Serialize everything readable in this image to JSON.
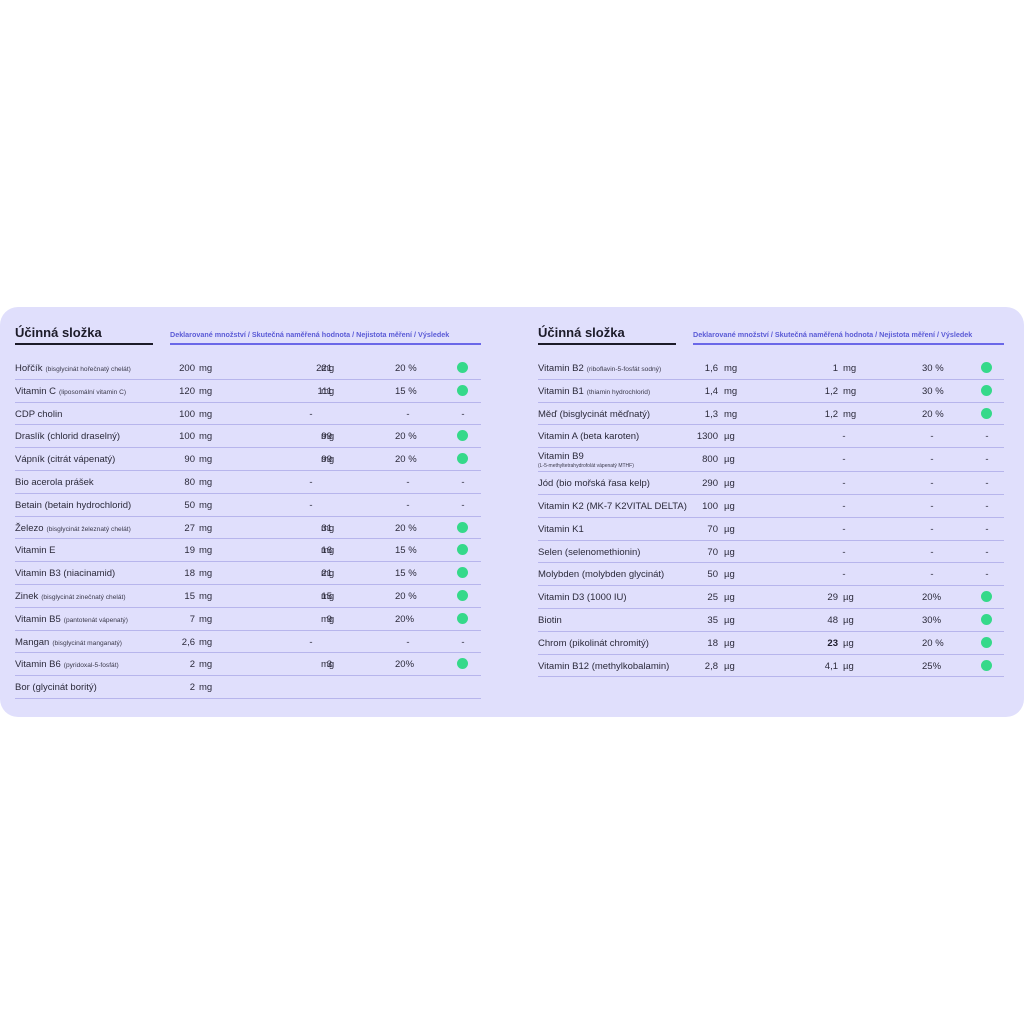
{
  "left": {
    "title": "Účinná složka",
    "columns": "Deklarované množství / Skutečná naměřená hodnota / Nejistota měření / Výsledek",
    "rows": [
      {
        "name": "Hořčík",
        "note": "(bisglycinát hořečnatý chelát)",
        "decl": "200",
        "decl_unit": "mg",
        "meas": "221",
        "meas_unit": "mg",
        "unc": "20 %",
        "ok": true
      },
      {
        "name": "Vitamin C",
        "note": "(liposomální vitamin C)",
        "decl": "120",
        "decl_unit": "mg",
        "meas": "111",
        "meas_unit": "mg",
        "unc": "15 %",
        "ok": true
      },
      {
        "name": "CDP cholin",
        "note": "",
        "decl": "100",
        "decl_unit": "mg",
        "meas": "-",
        "meas_unit": "",
        "unc": "-",
        "ok": false,
        "result": "-"
      },
      {
        "name": "Draslík (chlorid draselný)",
        "note": "",
        "decl": "100",
        "decl_unit": "mg",
        "meas": "99",
        "meas_unit": "mg",
        "unc": "20 %",
        "ok": true
      },
      {
        "name": "Vápník (citrát vápenatý)",
        "note": "",
        "decl": "90",
        "decl_unit": "mg",
        "meas": "99",
        "meas_unit": "mg",
        "unc": "20 %",
        "ok": true
      },
      {
        "name": "Bio acerola prášek",
        "note": "",
        "decl": "80",
        "decl_unit": "mg",
        "meas": "-",
        "meas_unit": "",
        "unc": "-",
        "ok": false,
        "result": "-"
      },
      {
        "name": "Betain (betain hydrochlorid)",
        "note": "",
        "decl": "50",
        "decl_unit": "mg",
        "meas": "-",
        "meas_unit": "",
        "unc": "-",
        "ok": false,
        "result": "-"
      },
      {
        "name": "Železo",
        "note": "(bisglycinát železnatý chelát)",
        "decl": "27",
        "decl_unit": "mg",
        "meas": "31",
        "meas_unit": "mg",
        "unc": "20 %",
        "ok": true
      },
      {
        "name": "Vitamin E",
        "note": "",
        "decl": "19",
        "decl_unit": "mg",
        "meas": "16",
        "meas_unit": "mg",
        "unc": "15 %",
        "ok": true
      },
      {
        "name": "Vitamin B3 (niacinamid)",
        "note": "",
        "decl": "18",
        "decl_unit": "mg",
        "meas": "21",
        "meas_unit": "mg",
        "unc": "15 %",
        "ok": true
      },
      {
        "name": "Zinek",
        "note": "(bisglycinát zinečnatý chelát)",
        "decl": "15",
        "decl_unit": "mg",
        "meas": "15",
        "meas_unit": "mg",
        "unc": "20 %",
        "ok": true
      },
      {
        "name": "Vitamin B5",
        "note": "(pantotenát vápenatý)",
        "decl": "7",
        "decl_unit": "mg",
        "meas": "9",
        "meas_unit": "mg",
        "unc": "20%",
        "ok": true
      },
      {
        "name": "Mangan",
        "note": "(bisglycinát manganatý)",
        "decl": "2,6",
        "decl_unit": "mg",
        "meas": "-",
        "meas_unit": "",
        "unc": "-",
        "ok": false,
        "result": "-"
      },
      {
        "name": "Vitamin B6",
        "note": "(pyridoxal-5-fosfát)",
        "decl": "2",
        "decl_unit": "mg",
        "meas": "3",
        "meas_unit": "mg",
        "unc": "20%",
        "ok": true
      },
      {
        "name": "Bor (glycinát boritý)",
        "note": "",
        "decl": "2",
        "decl_unit": "mg",
        "meas": "",
        "meas_unit": "",
        "unc": "",
        "ok": false,
        "result": ""
      }
    ]
  },
  "right": {
    "title": "Účinná složka",
    "columns": "Deklarované množství / Skutečná naměřená hodnota / Nejistota měření / Výsledek",
    "rows": [
      {
        "name": "Vitamin B2",
        "note": "(riboflavin-5-fosfát sodný)",
        "sub": "",
        "decl": "1,6",
        "decl_unit": "mg",
        "meas": "1",
        "meas_unit": "mg",
        "unc": "30 %",
        "ok": true
      },
      {
        "name": "Vitamin B1",
        "note": "(thiamin hydrochlorid)",
        "sub": "",
        "decl": "1,4",
        "decl_unit": "mg",
        "meas": "1,2",
        "meas_unit": "mg",
        "unc": "30 %",
        "ok": true
      },
      {
        "name": "Měď (bisglycinát měďnatý)",
        "note": "",
        "sub": "",
        "decl": "1,3",
        "decl_unit": "mg",
        "meas": "1,2",
        "meas_unit": "mg",
        "unc": "20 %",
        "ok": true
      },
      {
        "name": "Vitamin A (beta karoten)",
        "note": "",
        "sub": "",
        "decl": "1300",
        "decl_unit": "µg",
        "meas": "-",
        "meas_unit": "",
        "unc": "-",
        "ok": false,
        "result": "-"
      },
      {
        "name": "Vitamin B9",
        "note": "",
        "sub": "(L-5-methyltetrahydrofolát vápenatý MTHF)",
        "decl": "800",
        "decl_unit": "µg",
        "meas": "-",
        "meas_unit": "",
        "unc": "-",
        "ok": false,
        "result": "-"
      },
      {
        "name": "Jód (bio mořská řasa kelp)",
        "note": "",
        "sub": "",
        "decl": "290",
        "decl_unit": "µg",
        "meas": "-",
        "meas_unit": "",
        "unc": "-",
        "ok": false,
        "result": "-"
      },
      {
        "name": "Vitamin K2 (MK-7 K2VITAL DELTA)",
        "note": "",
        "sub": "",
        "decl": "100",
        "decl_unit": "µg",
        "meas": "-",
        "meas_unit": "",
        "unc": "-",
        "ok": false,
        "result": "-"
      },
      {
        "name": "Vitamin K1",
        "note": "",
        "sub": "",
        "decl": "70",
        "decl_unit": "µg",
        "meas": "-",
        "meas_unit": "",
        "unc": "-",
        "ok": false,
        "result": "-"
      },
      {
        "name": "Selen (selenomethionin)",
        "note": "",
        "sub": "",
        "decl": "70",
        "decl_unit": "µg",
        "meas": "-",
        "meas_unit": "",
        "unc": "-",
        "ok": false,
        "result": "-"
      },
      {
        "name": "Molybden (molybden glycinát)",
        "note": "",
        "sub": "",
        "decl": "50",
        "decl_unit": "µg",
        "meas": "-",
        "meas_unit": "",
        "unc": "-",
        "ok": false,
        "result": "-"
      },
      {
        "name": "Vitamin D3 (1000 IU)",
        "note": "",
        "sub": "",
        "decl": "25",
        "decl_unit": "µg",
        "meas": "29",
        "meas_unit": "µg",
        "unc": "20%",
        "ok": true
      },
      {
        "name": "Biotin",
        "note": "",
        "sub": "",
        "decl": "35",
        "decl_unit": "µg",
        "meas": "48",
        "meas_unit": "µg",
        "unc": "30%",
        "ok": true
      },
      {
        "name": "Chrom (pikolinát chromitý)",
        "note": "",
        "sub": "",
        "decl": "18",
        "decl_unit": "µg",
        "meas": "23",
        "meas_unit": "µg",
        "unc": "20 %",
        "ok": true,
        "meas_bold": true
      },
      {
        "name": "Vitamin B12 (methylkobalamin)",
        "note": "",
        "sub": "",
        "decl": "2,8",
        "decl_unit": "µg",
        "meas": "4,1",
        "meas_unit": "µg",
        "unc": "25%",
        "ok": true
      }
    ]
  },
  "colors": {
    "card": "#e0dffc",
    "accent": "#6a67e8",
    "ok_dot": "#35d98a",
    "row_rule": "#b7b5ec"
  }
}
